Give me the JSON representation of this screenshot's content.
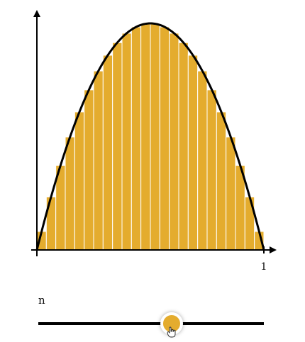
{
  "chart_data": {
    "type": "bar",
    "description_kind": "riemann-midpoint-rectangles-under-curve",
    "n": 24,
    "x_range": [
      0,
      1
    ],
    "curve": "y = 4x(1-x)",
    "xlim": [
      0,
      1
    ],
    "ylim": [
      0,
      1.08
    ],
    "x_tick_labels": [
      "1"
    ],
    "grid": false,
    "legend": "none"
  },
  "slider": {
    "label": "n",
    "value": 24,
    "min": 1,
    "max": 40
  },
  "colors": {
    "bar": "#e4ac2e",
    "bar_edge": "#ffffff",
    "curve": "#000000",
    "axis": "#000000",
    "thumb": "#e4ac2e"
  },
  "icons": {
    "cursor": "hand-pointer-icon"
  }
}
